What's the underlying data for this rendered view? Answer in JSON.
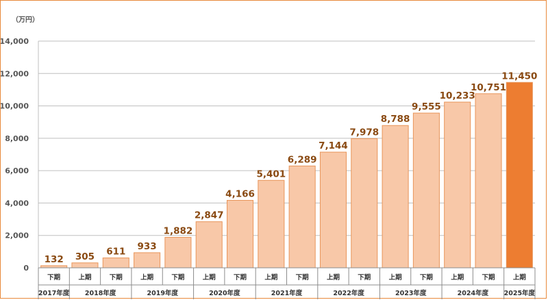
{
  "chart_data": {
    "type": "bar",
    "unit_label": "（万円）",
    "ylim": [
      0,
      14000
    ],
    "yticks": [
      0,
      2000,
      4000,
      6000,
      8000,
      10000,
      12000,
      14000
    ],
    "ytick_labels": [
      "0",
      "2,000",
      "4,000",
      "6,000",
      "8,000",
      "10,000",
      "12,000",
      "14,000"
    ],
    "grid": true,
    "categories": [
      "下期",
      "上期",
      "下期",
      "上期",
      "下期",
      "上期",
      "下期",
      "上期",
      "下期",
      "上期",
      "下期",
      "上期",
      "下期",
      "上期",
      "下期",
      "上期"
    ],
    "values": [
      132,
      305,
      611,
      933,
      1882,
      2847,
      4166,
      5401,
      6289,
      7144,
      7978,
      8788,
      9555,
      10233,
      10751,
      11450
    ],
    "value_labels": [
      "132",
      "305",
      "611",
      "933",
      "1,882",
      "2,847",
      "4,166",
      "5,401",
      "6,289",
      "7,144",
      "7,978",
      "8,788",
      "9,555",
      "10,233",
      "10,751",
      "11,450"
    ],
    "year_groups": [
      {
        "label": "2017年度",
        "span": 1
      },
      {
        "label": "2018年度",
        "span": 2
      },
      {
        "label": "2019年度",
        "span": 2
      },
      {
        "label": "2020年度",
        "span": 2
      },
      {
        "label": "2021年度",
        "span": 2
      },
      {
        "label": "2022年度",
        "span": 2
      },
      {
        "label": "2023年度",
        "span": 2
      },
      {
        "label": "2024年度",
        "span": 2
      },
      {
        "label": "2025年度",
        "span": 1
      }
    ],
    "highlight_index": 15,
    "colors": {
      "bar": "#f8c8a8",
      "bar_border": "#e8955a",
      "highlight": "#ed7d31",
      "grid": "#bfbfbf",
      "label": "#8a4a12"
    }
  }
}
